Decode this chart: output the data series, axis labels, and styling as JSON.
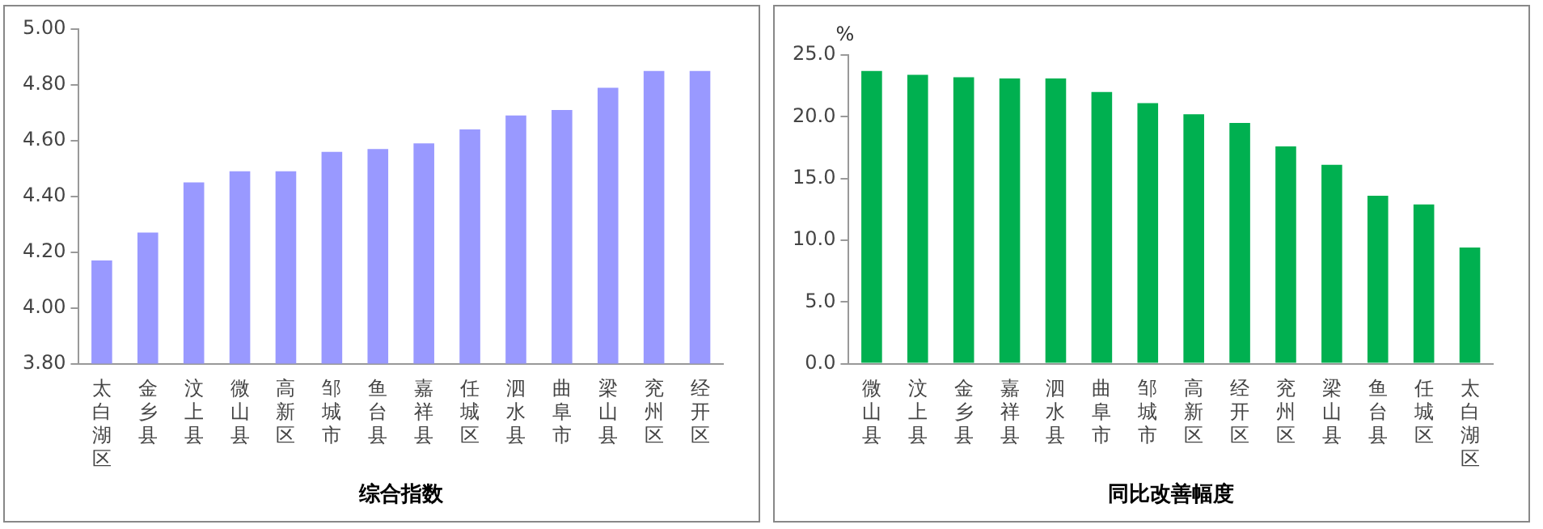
{
  "chart_data": [
    {
      "type": "bar",
      "xlabel": "综合指数",
      "categories": [
        "太白湖区",
        "金乡县",
        "汶上县",
        "微山县",
        "高新区",
        "邹城市",
        "鱼台县",
        "嘉祥县",
        "任城区",
        "泗水县",
        "曲阜市",
        "梁山县",
        "兖州区",
        "经开区"
      ],
      "values": [
        4.17,
        4.27,
        4.45,
        4.49,
        4.49,
        4.56,
        4.57,
        4.59,
        4.64,
        4.69,
        4.71,
        4.79,
        4.85,
        4.85
      ],
      "color": "#9999ff",
      "ylim": [
        3.8,
        5.0
      ],
      "yticks": [
        {
          "value": 3.8,
          "label": "3.80"
        },
        {
          "value": 4.0,
          "label": "4.00"
        },
        {
          "value": 4.2,
          "label": "4.20"
        },
        {
          "value": 4.4,
          "label": "4.40"
        },
        {
          "value": 4.6,
          "label": "4.60"
        },
        {
          "value": 4.8,
          "label": "4.80"
        },
        {
          "value": 5.0,
          "label": "5.00"
        }
      ],
      "grid": false,
      "legend": false
    },
    {
      "type": "bar",
      "xlabel": "同比改善幅度",
      "ylabel": "%",
      "categories": [
        "微山县",
        "汶上县",
        "金乡县",
        "嘉祥县",
        "泗水县",
        "曲阜市",
        "邹城市",
        "高新区",
        "经开区",
        "兖州区",
        "梁山县",
        "鱼台县",
        "任城区",
        "太白湖区"
      ],
      "values": [
        23.7,
        23.4,
        23.2,
        23.1,
        23.1,
        22.0,
        21.1,
        20.2,
        19.5,
        17.6,
        16.1,
        13.6,
        12.9,
        9.4
      ],
      "color": "#00b050",
      "ylim": [
        0,
        25
      ],
      "yticks": [
        {
          "value": 0,
          "label": "0.0"
        },
        {
          "value": 5,
          "label": "5.0"
        },
        {
          "value": 10,
          "label": "10.0"
        },
        {
          "value": 15,
          "label": "15.0"
        },
        {
          "value": 20,
          "label": "20.0"
        },
        {
          "value": 25,
          "label": "25.0"
        }
      ],
      "grid": false,
      "legend": false
    }
  ]
}
